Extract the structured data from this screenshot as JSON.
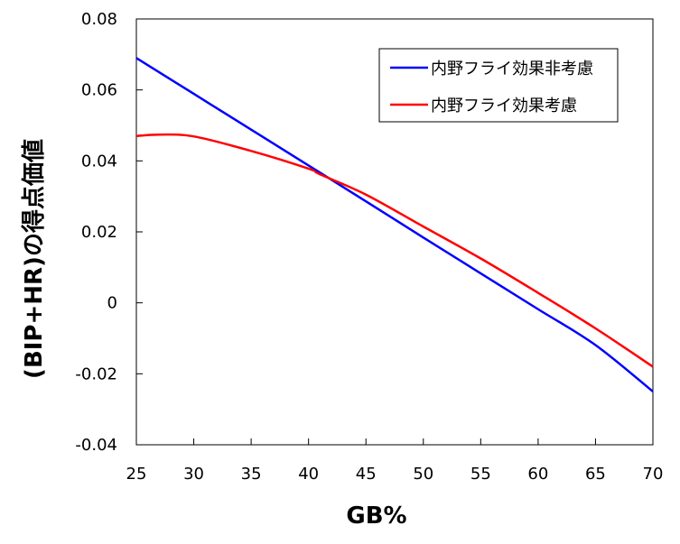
{
  "chart_data": {
    "type": "line",
    "title": "",
    "xlabel": "GB%",
    "ylabel": "(BIP+HR)の得点価値",
    "xlim": [
      25,
      70
    ],
    "ylim": [
      -0.04,
      0.08
    ],
    "xticks": [
      25,
      30,
      35,
      40,
      45,
      50,
      55,
      60,
      65,
      70
    ],
    "yticks": [
      0.08,
      0.06,
      0.04,
      0.02,
      0,
      -0.02,
      -0.04
    ],
    "ytick_labels": [
      "0.08",
      "0.06",
      "0.04",
      "0.02",
      "0",
      "-0.02",
      "-0.04"
    ],
    "grid": false,
    "legend_position": "top-right",
    "series": [
      {
        "name": "内野フライ効果非考慮",
        "color": "#0000ff",
        "x": [
          25,
          30,
          35,
          40,
          45,
          50,
          55,
          60,
          65,
          70
        ],
        "y": [
          0.069,
          0.0589,
          0.0488,
          0.0387,
          0.0286,
          0.0184,
          0.0083,
          -0.0018,
          -0.0119,
          -0.025
        ]
      },
      {
        "name": "内野フライ効果考慮",
        "color": "#ff0000",
        "x": [
          25,
          27,
          30,
          35,
          40,
          41,
          45,
          50,
          55,
          60,
          65,
          70
        ],
        "y": [
          0.047,
          0.0474,
          0.0469,
          0.0428,
          0.0378,
          0.0362,
          0.0305,
          0.0215,
          0.0125,
          0.0028,
          -0.0072,
          -0.018
        ]
      }
    ]
  }
}
